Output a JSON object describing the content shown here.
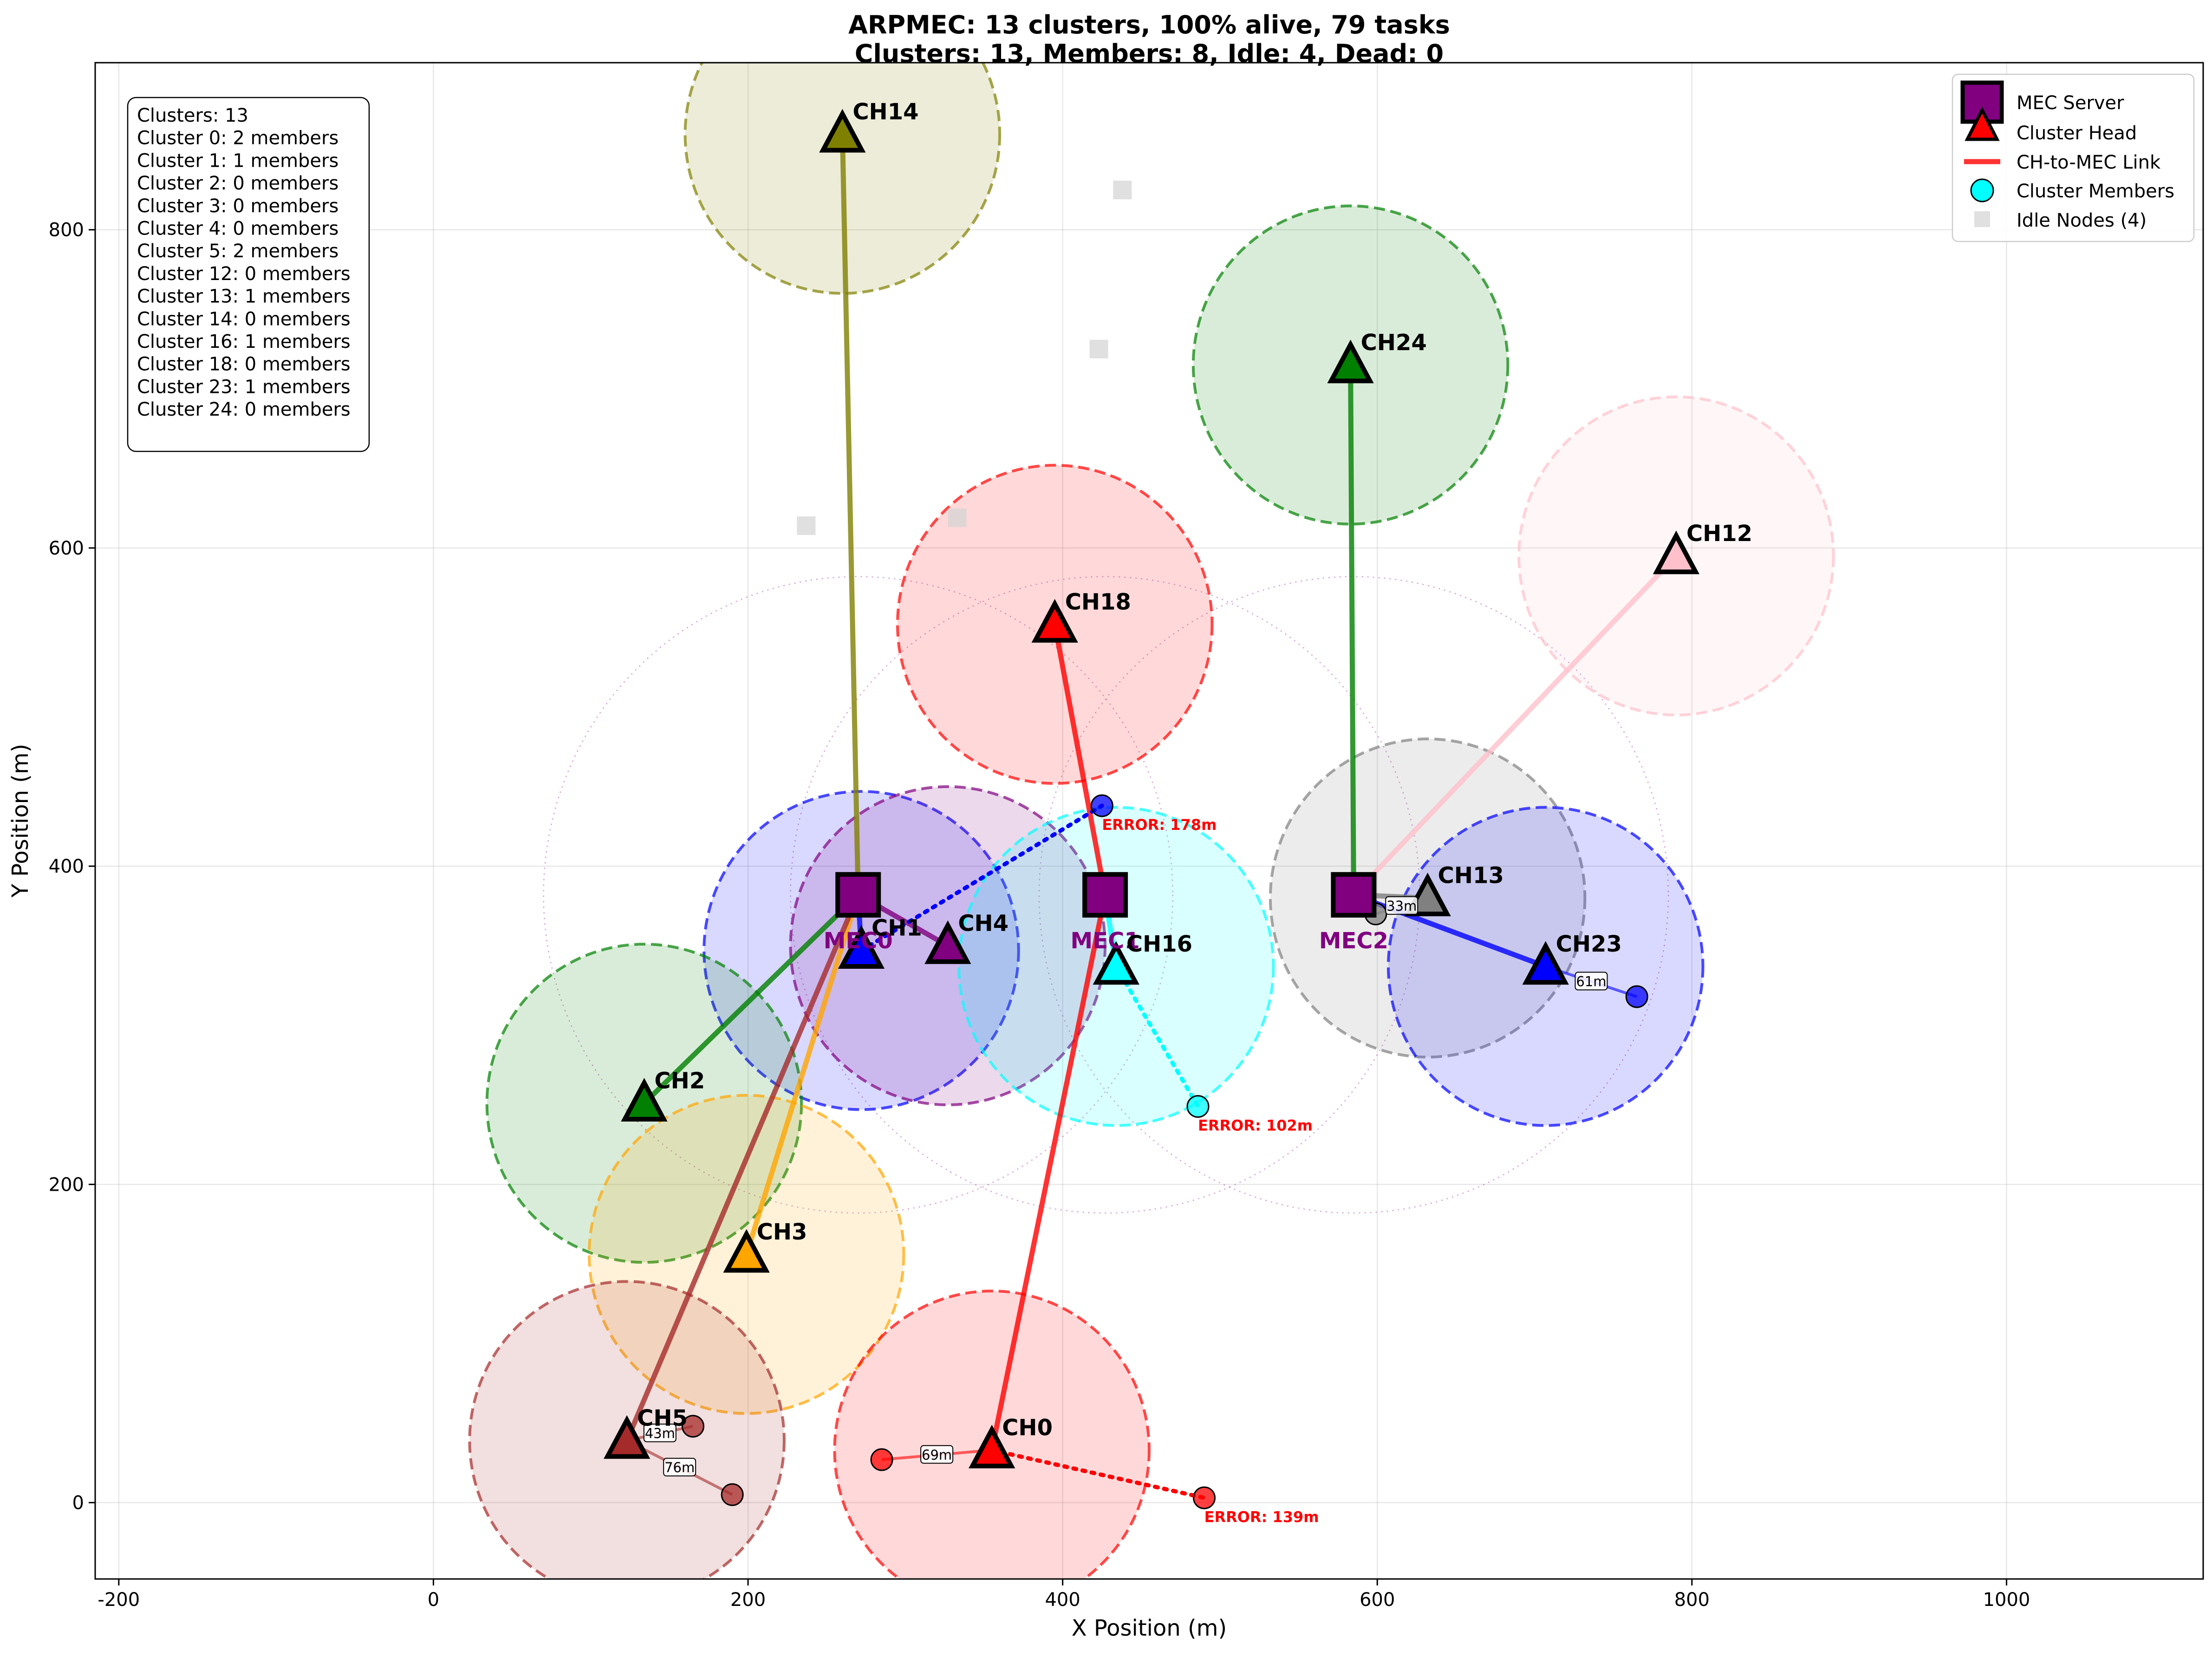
{
  "chart_data": {
    "type": "scatter",
    "title_lines": [
      "ARPMEC: 13 clusters, 100% alive, 79 tasks",
      "Clusters: 13, Members: 8, Idle: 4, Dead: 0"
    ],
    "xlabel": "X Position (m)",
    "ylabel": "Y Position (m)",
    "xlim": [
      -215,
      1125
    ],
    "ylim": [
      -48,
      905
    ],
    "xticks": [
      -200,
      0,
      200,
      400,
      600,
      800,
      1000
    ],
    "yticks": [
      0,
      200,
      400,
      600,
      800
    ],
    "grid": true,
    "legend_position": "top-right",
    "legend": [
      {
        "key": "mec",
        "label": "MEC Server"
      },
      {
        "key": "ch",
        "label": "Cluster Head"
      },
      {
        "key": "link",
        "label": "CH-to-MEC Link"
      },
      {
        "key": "member",
        "label": "Cluster Members"
      },
      {
        "key": "idle",
        "label": "Idle Nodes (4)"
      }
    ],
    "info_box": [
      "Clusters: 13",
      "Cluster 0: 2 members",
      "Cluster 1: 1 members",
      "Cluster 2: 0 members",
      "Cluster 3: 0 members",
      "Cluster 4: 0 members",
      "Cluster 5: 2 members",
      "Cluster 12: 0 members",
      "Cluster 13: 1 members",
      "Cluster 14: 0 members",
      "Cluster 16: 1 members",
      "Cluster 18: 0 members",
      "Cluster 23: 1 members",
      "Cluster 24: 0 members"
    ],
    "mec_servers": [
      {
        "id": "mec-0",
        "label": "MEC0",
        "x": 270,
        "y": 382
      },
      {
        "id": "mec-1",
        "label": "MEC1",
        "x": 427,
        "y": 382
      },
      {
        "id": "mec-2",
        "label": "MEC2",
        "x": 585,
        "y": 382
      }
    ],
    "mec_range": 200,
    "cluster_radius": 100,
    "cluster_heads": [
      {
        "id": "ch14",
        "label": "CH14",
        "x": 260,
        "y": 860,
        "color": "#808000",
        "mec": 0
      },
      {
        "id": "ch24",
        "label": "CH24",
        "x": 583,
        "y": 715,
        "color": "#008000",
        "mec": 2
      },
      {
        "id": "ch12",
        "label": "CH12",
        "x": 790,
        "y": 595,
        "color": "#ffc0cb",
        "mec": 2
      },
      {
        "id": "ch18",
        "label": "CH18",
        "x": 395,
        "y": 552,
        "color": "#ff0000",
        "mec": 1
      },
      {
        "id": "ch13",
        "label": "CH13",
        "x": 632,
        "y": 380,
        "color": "#808080",
        "mec": 2
      },
      {
        "id": "ch1",
        "label": "CH1",
        "x": 272,
        "y": 347,
        "color": "#0000ff",
        "mec": 0
      },
      {
        "id": "ch4",
        "label": "CH4",
        "x": 327,
        "y": 350,
        "color": "#800080",
        "mec": 0
      },
      {
        "id": "ch16",
        "label": "CH16",
        "x": 434,
        "y": 337,
        "color": "#00ffff",
        "mec": 1
      },
      {
        "id": "ch23",
        "label": "CH23",
        "x": 707,
        "y": 337,
        "color": "#0000ff",
        "mec": 2
      },
      {
        "id": "ch2",
        "label": "CH2",
        "x": 134,
        "y": 251,
        "color": "#008000",
        "mec": 0
      },
      {
        "id": "ch3",
        "label": "CH3",
        "x": 199,
        "y": 156,
        "color": "#ffa500",
        "mec": 0
      },
      {
        "id": "ch5",
        "label": "CH5",
        "x": 123,
        "y": 39,
        "color": "#a52a2a",
        "mec": 0
      },
      {
        "id": "ch0",
        "label": "CH0",
        "x": 355,
        "y": 33,
        "color": "#ff0000",
        "mec": 1
      }
    ],
    "members": [
      {
        "id": "m0a",
        "x": 285,
        "y": 27,
        "color": "#ff0000",
        "ch": "ch0",
        "dist": "69m"
      },
      {
        "id": "m0b",
        "x": 490,
        "y": 3,
        "color": "#ff0000",
        "ch": "ch0",
        "error": "ERROR: 139m"
      },
      {
        "id": "m1",
        "x": 425,
        "y": 438,
        "color": "#0000ff",
        "ch": "ch1",
        "error": "ERROR: 178m"
      },
      {
        "id": "m5a",
        "x": 165,
        "y": 48,
        "color": "#a52a2a",
        "ch": "ch5",
        "dist": "43m"
      },
      {
        "id": "m5b",
        "x": 190,
        "y": 5,
        "color": "#a52a2a",
        "ch": "ch5",
        "dist": "76m"
      },
      {
        "id": "m13",
        "x": 599,
        "y": 370,
        "color": "#808080",
        "ch": "ch13",
        "dist": "33m"
      },
      {
        "id": "m16",
        "x": 486,
        "y": 249,
        "color": "#00ffff",
        "ch": "ch16",
        "error": "ERROR: 102m"
      },
      {
        "id": "m23",
        "x": 765,
        "y": 318,
        "color": "#0000ff",
        "ch": "ch23",
        "dist": "61m"
      }
    ],
    "idle_nodes": [
      {
        "x": 438,
        "y": 825
      },
      {
        "x": 423,
        "y": 725
      },
      {
        "x": 237,
        "y": 614
      },
      {
        "x": 333,
        "y": 619
      }
    ]
  }
}
